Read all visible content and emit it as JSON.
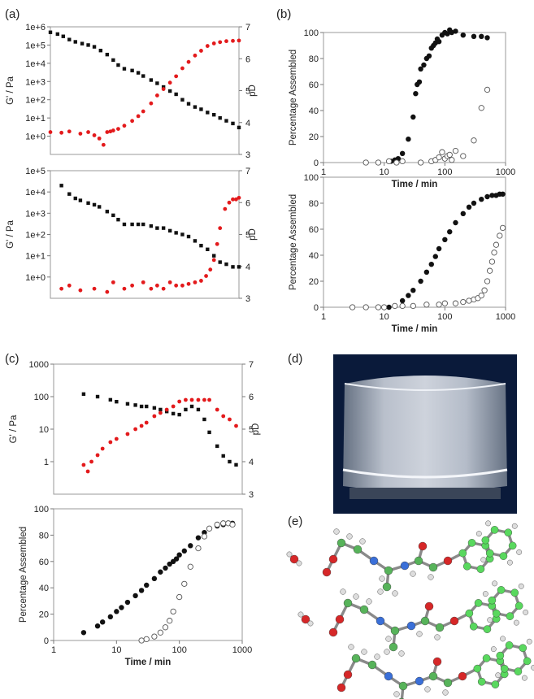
{
  "panel_labels": [
    "(a)",
    "(b)",
    "(c)",
    "(d)",
    "(e)"
  ],
  "colors": {
    "black_series": "#111111",
    "red_series": "#e31a1c",
    "open_marker": "#ffffff"
  },
  "chart_data": [
    {
      "panel": "(a)",
      "part": "rheology",
      "type": "scatter",
      "ylabel": "G' / Pa",
      "ylabel_right": "pD",
      "xscale": "log",
      "xlim": [
        1,
        1000
      ],
      "yscale": "log",
      "ylim": [
        0.1,
        1000000
      ],
      "yticks": [
        "1e+0",
        "1e+1",
        "1e+2",
        "1e+3",
        "1e+4",
        "1e+5",
        "1e+6"
      ],
      "y2lim": [
        3,
        7
      ],
      "y2ticks": [
        "3",
        "4",
        "5",
        "6",
        "7"
      ],
      "series": [
        {
          "axis": "left",
          "style": "black",
          "x": [
            1,
            1.3,
            1.6,
            2,
            2.5,
            3.2,
            4,
            5,
            6.3,
            8,
            10,
            12,
            15,
            20,
            25,
            30,
            40,
            50,
            63,
            80,
            100,
            126,
            158,
            200,
            250,
            316,
            400,
            500,
            630,
            800,
            1000
          ],
          "y": [
            500000,
            400000,
            300000,
            200000,
            150000,
            120000,
            100000,
            80000,
            50000,
            30000,
            15000,
            8000,
            5000,
            4000,
            3000,
            2000,
            1200,
            800,
            500,
            300,
            200,
            100,
            60,
            40,
            30,
            20,
            15,
            10,
            7,
            5,
            3
          ]
        },
        {
          "axis": "right",
          "style": "red",
          "x": [
            1,
            1.5,
            2,
            3,
            4,
            5,
            6,
            7,
            8,
            9,
            10,
            12,
            15,
            20,
            25,
            30,
            40,
            50,
            63,
            80,
            100,
            126,
            158,
            200,
            250,
            316,
            400,
            500,
            630,
            800,
            1000
          ],
          "y": [
            3.7,
            3.68,
            3.72,
            3.65,
            3.7,
            3.6,
            3.5,
            3.3,
            3.7,
            3.72,
            3.75,
            3.8,
            3.9,
            4.05,
            4.2,
            4.35,
            4.6,
            4.85,
            5.05,
            5.25,
            5.45,
            5.7,
            5.9,
            6.1,
            6.25,
            6.4,
            6.48,
            6.52,
            6.55,
            6.56,
            6.57
          ]
        }
      ]
    },
    {
      "panel": "(a)",
      "part": "assembly",
      "type": "scatter",
      "xlabel": "Time / min",
      "ylabel": "Percentage Assembled",
      "xscale": "log",
      "xlim": [
        1,
        1000
      ],
      "xticks": [
        "1",
        "10",
        "100",
        "1000"
      ],
      "ylim": [
        0,
        100
      ],
      "yticks": [
        "0",
        "20",
        "40",
        "60",
        "80",
        "100"
      ],
      "series": [
        {
          "style": "filled",
          "x": [
            13,
            15,
            17,
            20,
            25,
            30,
            33,
            35,
            38,
            40,
            45,
            50,
            55,
            60,
            65,
            70,
            75,
            80,
            90,
            100,
            110,
            120,
            130,
            150,
            200,
            300,
            400,
            500
          ],
          "y": [
            1,
            2,
            3,
            7,
            18,
            35,
            53,
            60,
            62,
            72,
            75,
            80,
            82,
            88,
            90,
            92,
            95,
            93,
            98,
            100,
            99,
            102,
            100,
            101,
            98,
            97,
            97,
            96
          ]
        },
        {
          "style": "open",
          "x": [
            5,
            8,
            12,
            16,
            20,
            40,
            60,
            70,
            80,
            90,
            100,
            110,
            120,
            130,
            150,
            200,
            300,
            400,
            500
          ],
          "y": [
            0,
            0,
            1,
            0,
            1,
            0,
            1,
            2,
            4,
            8,
            3,
            5,
            6,
            2,
            9,
            5,
            17,
            42,
            56
          ]
        }
      ]
    },
    {
      "panel": "(b)",
      "part": "rheology",
      "type": "scatter",
      "ylabel": "G' / Pa",
      "ylabel_right": "pD",
      "xscale": "log",
      "xlim": [
        1,
        1000
      ],
      "yscale": "log",
      "ylim": [
        0.1,
        100000
      ],
      "yticks": [
        "1e+0",
        "1e+1",
        "1e+2",
        "1e+3",
        "1e+4",
        "1e+5"
      ],
      "y2lim": [
        3,
        7
      ],
      "y2ticks": [
        "3",
        "4",
        "5",
        "6",
        "7"
      ],
      "series": [
        {
          "axis": "left",
          "style": "black",
          "x": [
            1.5,
            2,
            2.5,
            3,
            4,
            5,
            6,
            8,
            10,
            12,
            15,
            20,
            25,
            30,
            40,
            50,
            63,
            80,
            100,
            126,
            158,
            200,
            250,
            316,
            400,
            500,
            630,
            800,
            1000
          ],
          "y": [
            20000,
            8000,
            5000,
            4000,
            3000,
            2500,
            2000,
            1200,
            800,
            500,
            300,
            300,
            300,
            300,
            250,
            200,
            200,
            150,
            120,
            100,
            80,
            50,
            30,
            20,
            10,
            5,
            4,
            3,
            3
          ]
        },
        {
          "axis": "right",
          "style": "red",
          "x": [
            1.5,
            2,
            3,
            5,
            8,
            10,
            15,
            20,
            30,
            40,
            50,
            63,
            80,
            100,
            126,
            158,
            200,
            250,
            300,
            350,
            400,
            450,
            500,
            600,
            700,
            800,
            900,
            1000
          ],
          "y": [
            3.3,
            3.4,
            3.25,
            3.3,
            3.2,
            3.5,
            3.3,
            3.4,
            3.5,
            3.3,
            3.4,
            3.3,
            3.5,
            3.4,
            3.4,
            3.45,
            3.5,
            3.55,
            3.7,
            3.9,
            4.2,
            4.7,
            5.2,
            5.8,
            6.0,
            6.1,
            6.1,
            6.15
          ]
        }
      ]
    },
    {
      "panel": "(b)",
      "part": "assembly",
      "type": "scatter",
      "xlabel": "Time / min",
      "ylabel": "Percentage Assembled",
      "xscale": "log",
      "xlim": [
        1,
        1000
      ],
      "xticks": [
        "1",
        "10",
        "100",
        "1000"
      ],
      "ylim": [
        0,
        100
      ],
      "yticks": [
        "0",
        "20",
        "40",
        "60",
        "80",
        "100"
      ],
      "series": [
        {
          "style": "filled",
          "x": [
            5,
            8,
            12,
            15,
            20,
            25,
            30,
            40,
            50,
            60,
            70,
            80,
            100,
            120,
            150,
            200,
            250,
            300,
            400,
            500,
            600,
            700,
            800,
            900
          ],
          "y": [
            0,
            0,
            0,
            1,
            5,
            9,
            13,
            20,
            27,
            33,
            39,
            45,
            52,
            58,
            65,
            72,
            77,
            80,
            83,
            85,
            86,
            86,
            87,
            87
          ]
        },
        {
          "style": "open",
          "x": [
            3,
            5,
            8,
            10,
            15,
            20,
            30,
            50,
            80,
            100,
            150,
            200,
            250,
            300,
            350,
            400,
            450,
            500,
            550,
            600,
            650,
            700,
            800,
            900
          ],
          "y": [
            0,
            0,
            0,
            0,
            1,
            1,
            1,
            2,
            2,
            3,
            3,
            4,
            5,
            6,
            7,
            9,
            13,
            20,
            28,
            35,
            42,
            48,
            55,
            61
          ]
        }
      ]
    },
    {
      "panel": "(c)",
      "part": "rheology",
      "type": "scatter",
      "ylabel": "G' / Pa",
      "ylabel_right": "pD",
      "xscale": "log",
      "xlim": [
        1,
        1000
      ],
      "yscale": "log",
      "ylim": [
        0.1,
        1000
      ],
      "yticks": [
        "1",
        "10",
        "100",
        "1000"
      ],
      "y2lim": [
        3,
        7
      ],
      "y2ticks": [
        "3",
        "4",
        "5",
        "6",
        "7"
      ],
      "series": [
        {
          "axis": "left",
          "style": "black",
          "x": [
            3,
            5,
            8,
            10,
            15,
            20,
            25,
            30,
            40,
            50,
            63,
            80,
            100,
            126,
            158,
            200,
            250,
            300,
            400,
            500,
            630,
            800
          ],
          "y": [
            120,
            100,
            80,
            70,
            60,
            55,
            50,
            50,
            45,
            40,
            35,
            30,
            28,
            40,
            50,
            40,
            20,
            8,
            3,
            1.5,
            1,
            0.8
          ]
        },
        {
          "axis": "right",
          "style": "red",
          "x": [
            3,
            3.5,
            4,
            5,
            6,
            8,
            10,
            15,
            20,
            25,
            30,
            40,
            50,
            63,
            80,
            100,
            126,
            158,
            200,
            250,
            300,
            400,
            500,
            630,
            800
          ],
          "y": [
            3.9,
            3.7,
            4.0,
            4.2,
            4.4,
            4.6,
            4.7,
            4.85,
            5.0,
            5.1,
            5.2,
            5.4,
            5.5,
            5.6,
            5.7,
            5.85,
            5.9,
            5.9,
            5.9,
            5.9,
            5.9,
            5.6,
            5.4,
            5.3,
            5.1
          ]
        }
      ]
    },
    {
      "panel": "(c)",
      "part": "assembly",
      "type": "scatter",
      "xlabel": "Time / min",
      "ylabel": "Percentage Assembled",
      "xscale": "log",
      "xlim": [
        1,
        1000
      ],
      "xticks": [
        "1",
        "10",
        "100",
        "1000"
      ],
      "ylim": [
        0,
        100
      ],
      "yticks": [
        "0",
        "20",
        "40",
        "60",
        "80",
        "100"
      ],
      "series": [
        {
          "style": "filled",
          "x": [
            3,
            5,
            6,
            8,
            10,
            12,
            15,
            20,
            25,
            30,
            40,
            50,
            60,
            70,
            80,
            90,
            100,
            120,
            150,
            200,
            250,
            300,
            400,
            500,
            600,
            700
          ],
          "y": [
            6,
            11,
            14,
            18,
            22,
            25,
            29,
            34,
            38,
            42,
            47,
            52,
            55,
            58,
            60,
            62,
            65,
            68,
            72,
            78,
            82,
            85,
            87,
            88,
            89,
            89
          ]
        },
        {
          "style": "open",
          "x": [
            25,
            30,
            40,
            50,
            60,
            70,
            80,
            100,
            120,
            150,
            200,
            250,
            300,
            400,
            500,
            600,
            700
          ],
          "y": [
            0,
            1,
            3,
            6,
            10,
            15,
            22,
            33,
            43,
            56,
            70,
            79,
            85,
            88,
            89,
            89,
            88
          ]
        }
      ]
    }
  ]
}
